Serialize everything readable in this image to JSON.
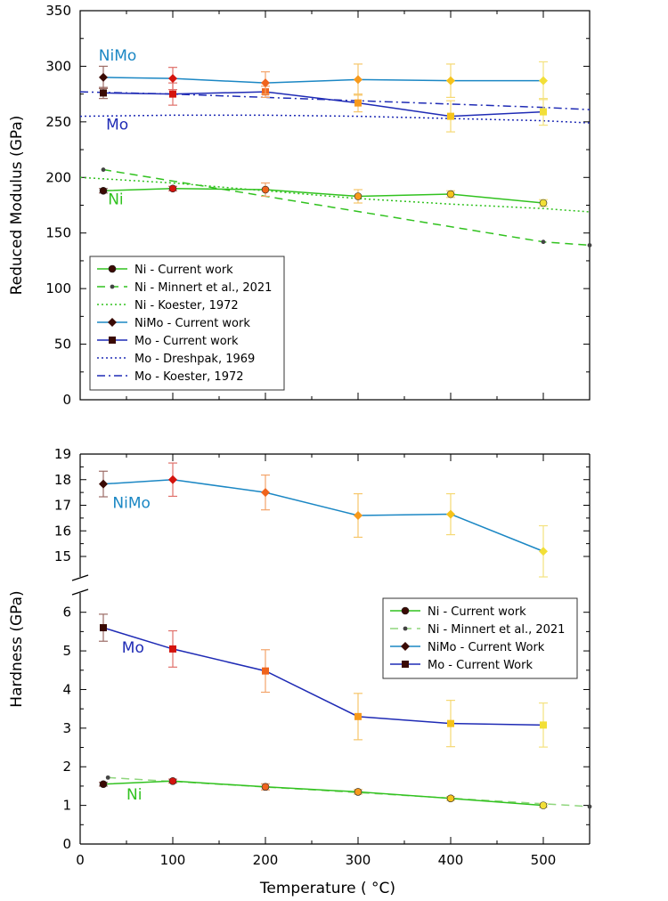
{
  "chart_data": [
    {
      "type": "line",
      "panel": "top",
      "ylabel": "Reduced Modulus (GPa)",
      "xlabel": "",
      "xlim": [
        0,
        550
      ],
      "ylim": [
        0,
        350
      ],
      "y_ticks": [
        0,
        50,
        100,
        150,
        200,
        250,
        300,
        350
      ],
      "grid": false,
      "legend_position": "bottom-left",
      "annotations": [
        {
          "text": "NiMo",
          "x": 20,
          "y": 305,
          "color": "#1b87c4"
        },
        {
          "text": "Mo",
          "x": 28,
          "y": 243,
          "color": "#1f2bb5"
        },
        {
          "text": "Ni",
          "x": 30,
          "y": 176,
          "color": "#31c21f"
        }
      ],
      "series": [
        {
          "name": "Ni - Current work",
          "style": "solid-marker",
          "marker": "circle",
          "color": "#31c21f",
          "x": [
            25,
            100,
            200,
            300,
            400,
            500
          ],
          "y": [
            188,
            190,
            189,
            183,
            185,
            177
          ],
          "err": [
            2,
            2,
            6,
            6,
            3,
            3
          ]
        },
        {
          "name": "Ni - Minnert et al., 2021",
          "style": "dashed",
          "marker": "dot",
          "color": "#31c21f",
          "x": [
            25,
            500,
            550
          ],
          "y": [
            207,
            142,
            139
          ]
        },
        {
          "name": "Ni - Koester, 1972",
          "style": "dotted",
          "marker": "none",
          "color": "#31c21f",
          "x": [
            0,
            100,
            200,
            300,
            400,
            500,
            550
          ],
          "y": [
            200,
            195,
            188,
            181,
            176,
            172,
            169
          ]
        },
        {
          "name": "NiMo - Current work",
          "style": "solid-marker",
          "marker": "diamond",
          "color": "#1b87c4",
          "x": [
            25,
            100,
            200,
            300,
            400,
            500
          ],
          "y": [
            290,
            289,
            285,
            288,
            287,
            287
          ],
          "err": [
            10,
            10,
            10,
            14,
            15,
            17
          ]
        },
        {
          "name": "Mo - Current work",
          "style": "solid-marker",
          "marker": "square",
          "color": "#1f2bb5",
          "x": [
            25,
            100,
            200,
            300,
            400,
            500
          ],
          "y": [
            276,
            275,
            277,
            267,
            255,
            259
          ],
          "err": [
            5,
            10,
            5,
            8,
            14,
            12
          ]
        },
        {
          "name": "Mo - Dreshpak, 1969",
          "style": "dotted",
          "marker": "none",
          "color": "#1f2bb5",
          "x": [
            0,
            100,
            200,
            300,
            400,
            500,
            550
          ],
          "y": [
            255,
            256,
            256,
            255,
            253,
            251,
            249
          ]
        },
        {
          "name": "Mo - Koester, 1972",
          "style": "dashdot",
          "marker": "none",
          "color": "#1f2bb5",
          "x": [
            0,
            100,
            200,
            300,
            400,
            500,
            550
          ],
          "y": [
            277,
            275,
            272,
            269,
            266,
            263,
            261
          ]
        }
      ]
    },
    {
      "type": "line",
      "panel": "bottom-upper",
      "ylabel": "Hardness (GPa)",
      "xlim": [
        0,
        550
      ],
      "ylim": [
        14.2,
        19
      ],
      "y_ticks": [
        15,
        16,
        17,
        18,
        19
      ],
      "series": [
        {
          "name": "NiMo - Current Work",
          "marker": "diamond",
          "color": "#1b87c4",
          "x": [
            25,
            100,
            200,
            300,
            400,
            500
          ],
          "y": [
            17.83,
            18.0,
            17.5,
            16.6,
            16.65,
            15.2
          ],
          "err": [
            0.5,
            0.65,
            0.68,
            0.85,
            0.8,
            1.0
          ]
        }
      ],
      "annotations": [
        {
          "text": "NiMo",
          "x": 35,
          "y": 16.9,
          "color": "#1b87c4"
        }
      ]
    },
    {
      "type": "line",
      "panel": "bottom-lower",
      "xlabel": "Temperature ( °C)",
      "xlim": [
        0,
        550
      ],
      "ylim": [
        0,
        6.5
      ],
      "y_ticks": [
        0,
        1,
        2,
        3,
        4,
        5,
        6
      ],
      "x_ticks": [
        0,
        100,
        200,
        300,
        400,
        500
      ],
      "legend_position": "top-right",
      "annotations": [
        {
          "text": "Mo",
          "x": 45,
          "y": 4.95,
          "color": "#1f2bb5"
        },
        {
          "text": "Ni",
          "x": 50,
          "y": 1.15,
          "color": "#31c21f"
        }
      ],
      "series": [
        {
          "name": "Ni - Current work",
          "style": "solid-marker",
          "marker": "circle",
          "color": "#31c21f",
          "x": [
            25,
            100,
            200,
            300,
            400,
            500
          ],
          "y": [
            1.55,
            1.63,
            1.48,
            1.35,
            1.18,
            1.0
          ],
          "err": [
            0.05,
            0.05,
            0.08,
            0.06,
            0.05,
            0.05
          ]
        },
        {
          "name": "Ni - Minnert et al., 2021",
          "style": "dashed",
          "marker": "dot",
          "color": "#8fd67d",
          "x": [
            30,
            550
          ],
          "y": [
            1.72,
            0.97
          ]
        },
        {
          "name": "NiMo - Current Work",
          "style": "solid-marker",
          "marker": "diamond",
          "color": "#1b87c4",
          "x": [],
          "y": []
        },
        {
          "name": "Mo - Current Work",
          "style": "solid-marker",
          "marker": "square",
          "color": "#1f2bb5",
          "x": [
            25,
            100,
            200,
            300,
            400,
            500
          ],
          "y": [
            5.6,
            5.05,
            4.48,
            3.3,
            3.12,
            3.08
          ],
          "err": [
            0.35,
            0.47,
            0.55,
            0.6,
            0.6,
            0.57
          ]
        }
      ]
    }
  ]
}
